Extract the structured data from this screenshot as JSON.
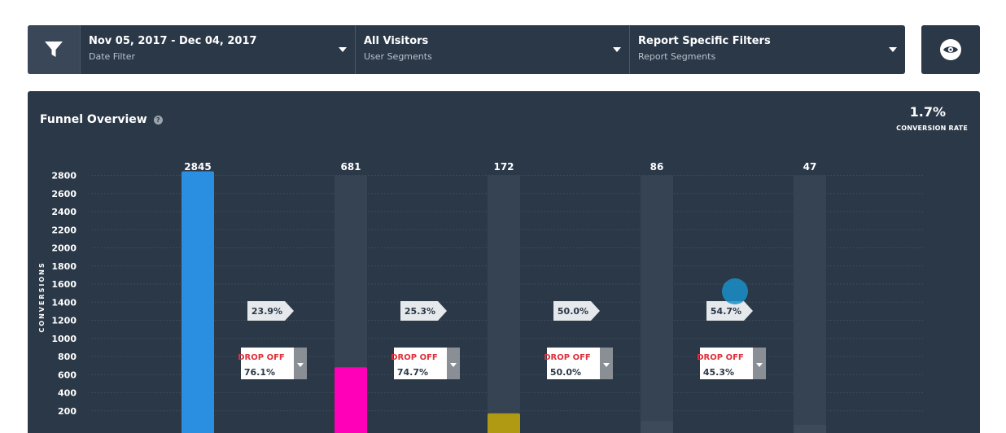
{
  "toolbar": {
    "filter_icon": "filter-icon",
    "date": {
      "title": "Nov 05, 2017 - Dec 04, 2017",
      "subtitle": "Date Filter"
    },
    "segments": {
      "title": "All Visitors",
      "subtitle": "User Segments"
    },
    "report": {
      "title": "Report Specific Filters",
      "subtitle": "Report Segments"
    },
    "view_icon": "eye-icon"
  },
  "panel": {
    "title": "Funnel Overview",
    "help_icon": "help-icon",
    "conversion_rate": "1.7%",
    "conversion_rate_label": "CONVERSION RATE"
  },
  "chart_data": {
    "type": "bar",
    "title": "Funnel Overview",
    "ylabel": "CONVERSIONS",
    "ylim": [
      0,
      2800
    ],
    "y_ticks": [
      200,
      400,
      600,
      800,
      1000,
      1200,
      1400,
      1600,
      1800,
      2000,
      2200,
      2400,
      2600,
      2800
    ],
    "grid": true,
    "values": [
      2845,
      681,
      172,
      86,
      47
    ],
    "value_labels": [
      "2845",
      "681",
      "172",
      "86",
      "47"
    ],
    "colors": [
      "#2a8fe0",
      "#ff00b8",
      "#b09a14",
      "#3d4a5a",
      "#3d4a5a"
    ],
    "step_rates": [
      "23.9%",
      "25.3%",
      "50.0%",
      "54.7%"
    ],
    "drop_off_label": "DROP OFF",
    "drop_offs": [
      "76.1%",
      "74.7%",
      "50.0%",
      "45.3%"
    ]
  }
}
